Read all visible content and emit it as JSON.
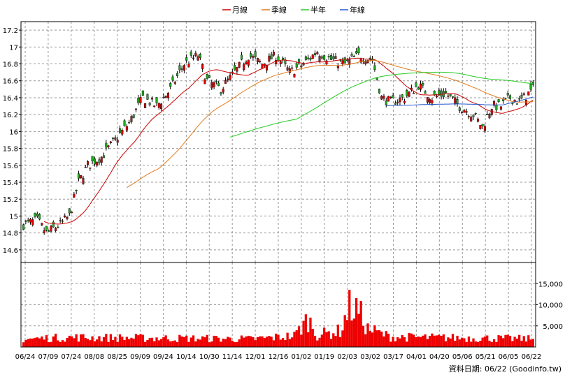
{
  "legend": [
    {
      "label": "月線",
      "color": "#cc0000"
    },
    {
      "label": "季線",
      "color": "#e07a1a"
    },
    {
      "label": "半年",
      "color": "#22cc22"
    },
    {
      "label": "年線",
      "color": "#2255cc"
    }
  ],
  "footer": {
    "source_text": "資料日期: 06/22 (Goodinfo.tw)"
  },
  "chart_data": [
    {
      "type": "candlestick",
      "price_axis": {
        "ylim": [
          14.45,
          17.3
        ],
        "ticks": [
          14.6,
          14.8,
          15,
          15.2,
          15.4,
          15.6,
          15.8,
          16,
          16.2,
          16.4,
          16.6,
          16.8,
          17,
          17.2
        ],
        "tick_labels": [
          "14.6",
          "14.8",
          "15",
          "15.2",
          "15.4",
          "15.6",
          "15.8",
          "16",
          "16.2",
          "16.4",
          "16.6",
          "16.8",
          "17",
          "17.2"
        ]
      },
      "x_tick_labels": [
        "06/24",
        "07/09",
        "07/24",
        "08/08",
        "08/25",
        "09/09",
        "09/24",
        "10/14",
        "10/30",
        "11/14",
        "12/01",
        "12/16",
        "01/02",
        "01/19",
        "02/03",
        "03/02",
        "03/17",
        "04/01",
        "04/20",
        "05/06",
        "05/21",
        "06/05",
        "06/22"
      ],
      "close_anchors": [
        [
          0,
          14.9
        ],
        [
          6,
          14.95
        ],
        [
          10,
          14.8
        ],
        [
          16,
          14.9
        ],
        [
          20,
          15.0
        ],
        [
          24,
          15.4
        ],
        [
          28,
          15.6
        ],
        [
          34,
          15.7
        ],
        [
          40,
          15.9
        ],
        [
          46,
          16.1
        ],
        [
          52,
          16.4
        ],
        [
          58,
          16.3
        ],
        [
          64,
          16.5
        ],
        [
          70,
          16.8
        ],
        [
          76,
          16.9
        ],
        [
          80,
          16.6
        ],
        [
          86,
          16.5
        ],
        [
          92,
          16.7
        ],
        [
          98,
          16.9
        ],
        [
          104,
          16.8
        ],
        [
          110,
          16.9
        ],
        [
          116,
          16.7
        ],
        [
          122,
          16.8
        ],
        [
          128,
          16.95
        ],
        [
          134,
          16.85
        ],
        [
          140,
          16.8
        ],
        [
          146,
          16.9
        ],
        [
          152,
          16.85
        ],
        [
          156,
          16.4
        ],
        [
          160,
          16.35
        ],
        [
          166,
          16.4
        ],
        [
          172,
          16.55
        ],
        [
          178,
          16.4
        ],
        [
          184,
          16.45
        ],
        [
          190,
          16.3
        ],
        [
          196,
          16.2
        ],
        [
          200,
          16.05
        ],
        [
          204,
          16.3
        ],
        [
          208,
          16.3
        ],
        [
          212,
          16.4
        ],
        [
          216,
          16.35
        ],
        [
          222,
          16.5
        ]
      ],
      "moving_averages": [
        {
          "name": "月線",
          "window": 20
        },
        {
          "name": "季線",
          "window": 60
        },
        {
          "name": "半年",
          "window": 120
        },
        {
          "name": "年線",
          "window": 210
        }
      ]
    },
    {
      "type": "bar",
      "volume_axis": {
        "ylim": [
          0,
          20000
        ],
        "ticks": [
          5000,
          10000,
          15000
        ],
        "tick_labels": [
          "5,000",
          "10,000",
          "15,000"
        ]
      },
      "volume_level_anchors": [
        [
          0,
          2000
        ],
        [
          20,
          2400
        ],
        [
          60,
          2200
        ],
        [
          100,
          2000
        ],
        [
          118,
          2800
        ],
        [
          124,
          7000
        ],
        [
          128,
          3000
        ],
        [
          138,
          4000
        ],
        [
          142,
          10000
        ],
        [
          146,
          9000
        ],
        [
          150,
          4500
        ],
        [
          160,
          2500
        ],
        [
          200,
          2200
        ],
        [
          222,
          2000
        ]
      ]
    }
  ]
}
